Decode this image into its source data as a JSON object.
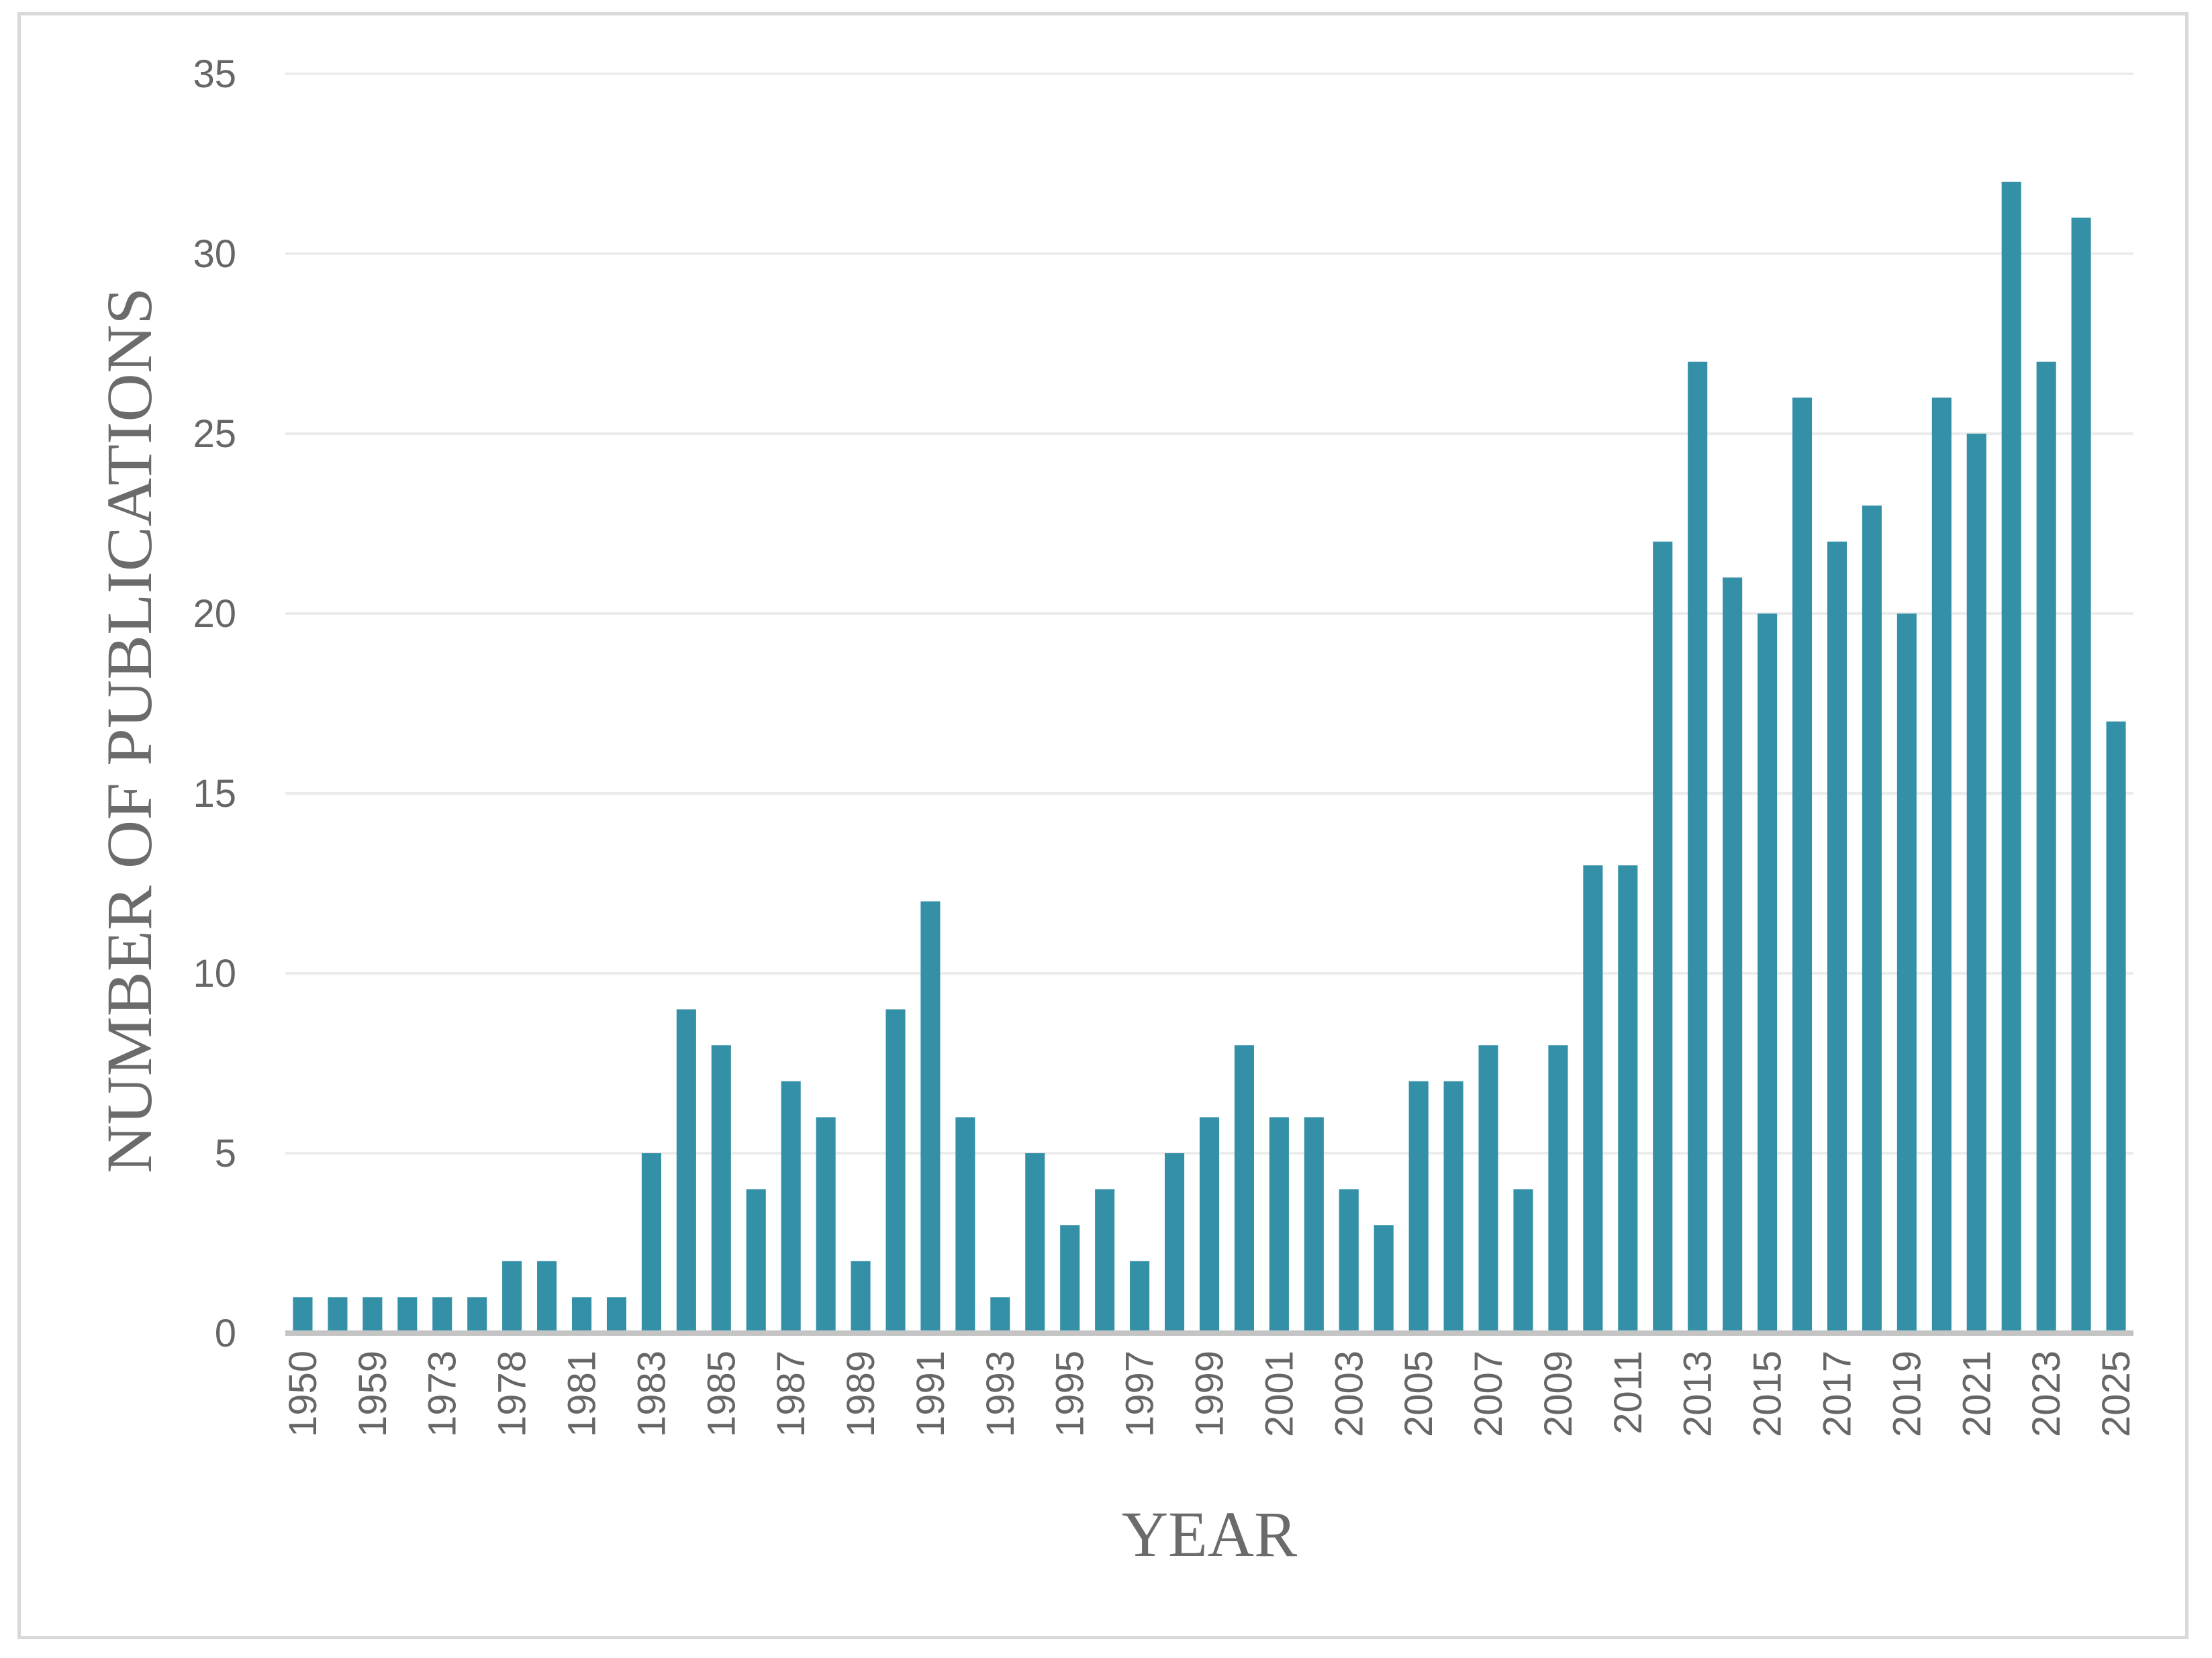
{
  "chart_data": {
    "type": "bar",
    "title": "",
    "xlabel": "YEAR",
    "ylabel": "NUMBER OF PUBLICATIONS",
    "ylim": [
      0,
      35
    ],
    "yticks": [
      "0",
      "5",
      "10",
      "15",
      "20",
      "25",
      "30",
      "35"
    ],
    "grid": true,
    "legend": "none",
    "color": "#3490a7",
    "categories": [
      "1950",
      "",
      "1959",
      "",
      "1973",
      "",
      "1978",
      "",
      "1981",
      "",
      "1983",
      "",
      "1985",
      "",
      "1987",
      "",
      "1989",
      "",
      "1991",
      "",
      "1993",
      "",
      "1995",
      "",
      "1997",
      "",
      "1999",
      "",
      "2001",
      "",
      "2003",
      "",
      "2005",
      "",
      "2007",
      "",
      "2009",
      "",
      "2011",
      "",
      "2013",
      "",
      "2015",
      "",
      "2017",
      "",
      "2019",
      "",
      "2021",
      "",
      "2023",
      "",
      "2025"
    ],
    "values": [
      1,
      1,
      1,
      1,
      1,
      1,
      2,
      2,
      1,
      1,
      5,
      9,
      8,
      4,
      7,
      6,
      2,
      9,
      12,
      6,
      1,
      5,
      3,
      4,
      2,
      5,
      6,
      8,
      6,
      6,
      4,
      3,
      7,
      7,
      8,
      4,
      8,
      13,
      13,
      22,
      27,
      21,
      20,
      26,
      22,
      23,
      20,
      26,
      25,
      32,
      27,
      31,
      17
    ]
  }
}
